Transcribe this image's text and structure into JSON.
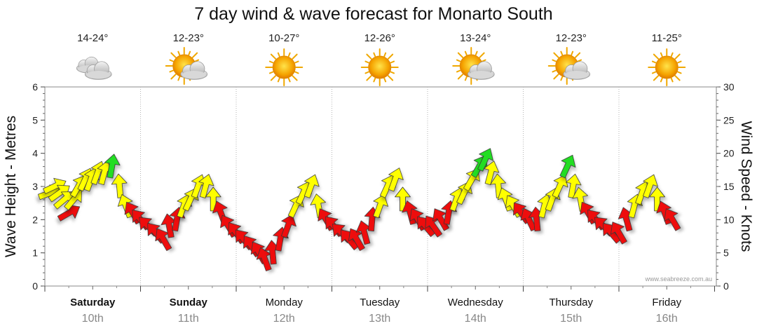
{
  "chart_data": {
    "type": "scatter",
    "title": "7 day wind & wave forecast for Monarto South",
    "ylabel_left": "Wave Height - Metres",
    "ylabel_right": "Wind Speed - Knots",
    "ylim_left": [
      0,
      6
    ],
    "ylim_right": [
      0,
      30
    ],
    "left_ticks": [
      "0",
      "1",
      "2",
      "3",
      "4",
      "5",
      "6"
    ],
    "right_ticks": [
      "0",
      "5",
      "10",
      "15",
      "20",
      "25",
      "30"
    ],
    "credit": "www.seabreeze.com.au",
    "legend_colors": {
      "low": "#ee1111",
      "mid": "#ffff00",
      "high": "#22dd22"
    },
    "days": [
      {
        "name": "Saturday",
        "date": "10th",
        "temp": "14-24°",
        "icon": "cloud-icon",
        "bold": true
      },
      {
        "name": "Sunday",
        "date": "11th",
        "temp": "12-23°",
        "icon": "sun-cloud-icon",
        "bold": true
      },
      {
        "name": "Monday",
        "date": "12th",
        "temp": "10-27°",
        "icon": "sun-icon",
        "bold": false
      },
      {
        "name": "Tuesday",
        "date": "13th",
        "temp": "12-26°",
        "icon": "sun-icon",
        "bold": false
      },
      {
        "name": "Wednesday",
        "date": "14th",
        "temp": "13-24°",
        "icon": "sun-cloud-icon",
        "bold": false
      },
      {
        "name": "Thursday",
        "date": "15th",
        "temp": "12-23°",
        "icon": "sun-cloud-icon",
        "bold": false
      },
      {
        "name": "Friday",
        "date": "16th",
        "temp": "11-25°",
        "icon": "sun-icon",
        "bold": false
      }
    ],
    "wind_arrows": [
      {
        "t": 0.05,
        "speed": 14,
        "dir": 250
      },
      {
        "t": 0.1,
        "speed": 15,
        "dir": 245
      },
      {
        "t": 0.15,
        "speed": 14,
        "dir": 235
      },
      {
        "t": 0.2,
        "speed": 13,
        "dir": 230
      },
      {
        "t": 0.25,
        "speed": 11,
        "dir": 240
      },
      {
        "t": 0.3,
        "speed": 13,
        "dir": 220
      },
      {
        "t": 0.35,
        "speed": 15,
        "dir": 210
      },
      {
        "t": 0.42,
        "speed": 16,
        "dir": 205
      },
      {
        "t": 0.48,
        "speed": 16,
        "dir": 200
      },
      {
        "t": 0.55,
        "speed": 17,
        "dir": 200
      },
      {
        "t": 0.62,
        "speed": 17,
        "dir": 195
      },
      {
        "t": 0.7,
        "speed": 18,
        "dir": 190
      },
      {
        "t": 0.78,
        "speed": 15,
        "dir": 175
      },
      {
        "t": 0.85,
        "speed": 12,
        "dir": 160
      },
      {
        "t": 0.92,
        "speed": 11,
        "dir": 150
      },
      {
        "t": 1.0,
        "speed": 10,
        "dir": 140
      },
      {
        "t": 1.08,
        "speed": 9,
        "dir": 135
      },
      {
        "t": 1.16,
        "speed": 8,
        "dir": 140
      },
      {
        "t": 1.24,
        "speed": 7,
        "dir": 150
      },
      {
        "t": 1.3,
        "speed": 9,
        "dir": 170
      },
      {
        "t": 1.38,
        "speed": 10,
        "dir": 190
      },
      {
        "t": 1.45,
        "speed": 12,
        "dir": 200
      },
      {
        "t": 1.52,
        "speed": 13,
        "dir": 205
      },
      {
        "t": 1.6,
        "speed": 15,
        "dir": 200
      },
      {
        "t": 1.68,
        "speed": 15,
        "dir": 195
      },
      {
        "t": 1.76,
        "speed": 13,
        "dir": 180
      },
      {
        "t": 1.84,
        "speed": 11,
        "dir": 160
      },
      {
        "t": 1.92,
        "speed": 9,
        "dir": 150
      },
      {
        "t": 2.0,
        "speed": 8,
        "dir": 145
      },
      {
        "t": 2.08,
        "speed": 7,
        "dir": 140
      },
      {
        "t": 2.16,
        "speed": 6,
        "dir": 145
      },
      {
        "t": 2.24,
        "speed": 5,
        "dir": 150
      },
      {
        "t": 2.3,
        "speed": 4,
        "dir": 160
      },
      {
        "t": 2.38,
        "speed": 5,
        "dir": 175
      },
      {
        "t": 2.46,
        "speed": 7,
        "dir": 190
      },
      {
        "t": 2.54,
        "speed": 9,
        "dir": 200
      },
      {
        "t": 2.62,
        "speed": 12,
        "dir": 205
      },
      {
        "t": 2.7,
        "speed": 14,
        "dir": 205
      },
      {
        "t": 2.78,
        "speed": 15,
        "dir": 200
      },
      {
        "t": 2.86,
        "speed": 12,
        "dir": 170
      },
      {
        "t": 2.94,
        "speed": 10,
        "dir": 150
      },
      {
        "t": 3.02,
        "speed": 9,
        "dir": 140
      },
      {
        "t": 3.1,
        "speed": 8,
        "dir": 135
      },
      {
        "t": 3.18,
        "speed": 7,
        "dir": 140
      },
      {
        "t": 3.26,
        "speed": 7,
        "dir": 150
      },
      {
        "t": 3.34,
        "speed": 8,
        "dir": 165
      },
      {
        "t": 3.42,
        "speed": 10,
        "dir": 185
      },
      {
        "t": 3.5,
        "speed": 12,
        "dir": 200
      },
      {
        "t": 3.58,
        "speed": 15,
        "dir": 205
      },
      {
        "t": 3.66,
        "speed": 16,
        "dir": 200
      },
      {
        "t": 3.74,
        "speed": 13,
        "dir": 180
      },
      {
        "t": 3.82,
        "speed": 11,
        "dir": 165
      },
      {
        "t": 3.9,
        "speed": 10,
        "dir": 150
      },
      {
        "t": 3.98,
        "speed": 9,
        "dir": 140
      },
      {
        "t": 4.06,
        "speed": 9,
        "dir": 145
      },
      {
        "t": 4.14,
        "speed": 10,
        "dir": 150
      },
      {
        "t": 4.22,
        "speed": 11,
        "dir": 190
      },
      {
        "t": 4.3,
        "speed": 13,
        "dir": 200
      },
      {
        "t": 4.38,
        "speed": 14,
        "dir": 205
      },
      {
        "t": 4.46,
        "speed": 16,
        "dir": 210
      },
      {
        "t": 4.54,
        "speed": 18,
        "dir": 210
      },
      {
        "t": 4.6,
        "speed": 19,
        "dir": 205
      },
      {
        "t": 4.66,
        "speed": 17,
        "dir": 195
      },
      {
        "t": 4.74,
        "speed": 15,
        "dir": 175
      },
      {
        "t": 4.82,
        "speed": 13,
        "dir": 160
      },
      {
        "t": 4.9,
        "speed": 12,
        "dir": 150
      },
      {
        "t": 4.98,
        "speed": 11,
        "dir": 145
      },
      {
        "t": 5.06,
        "speed": 10,
        "dir": 155
      },
      {
        "t": 5.14,
        "speed": 10,
        "dir": 175
      },
      {
        "t": 5.22,
        "speed": 12,
        "dir": 195
      },
      {
        "t": 5.3,
        "speed": 13,
        "dir": 200
      },
      {
        "t": 5.38,
        "speed": 15,
        "dir": 205
      },
      {
        "t": 5.46,
        "speed": 18,
        "dir": 205
      },
      {
        "t": 5.52,
        "speed": 15,
        "dir": 190
      },
      {
        "t": 5.6,
        "speed": 13,
        "dir": 170
      },
      {
        "t": 5.68,
        "speed": 11,
        "dir": 150
      },
      {
        "t": 5.76,
        "speed": 10,
        "dir": 140
      },
      {
        "t": 5.84,
        "speed": 9,
        "dir": 135
      },
      {
        "t": 5.92,
        "speed": 8,
        "dir": 140
      },
      {
        "t": 6.0,
        "speed": 8,
        "dir": 150
      },
      {
        "t": 6.08,
        "speed": 10,
        "dir": 165
      },
      {
        "t": 6.16,
        "speed": 12,
        "dir": 195
      },
      {
        "t": 6.24,
        "speed": 14,
        "dir": 200
      },
      {
        "t": 6.32,
        "speed": 15,
        "dir": 200
      },
      {
        "t": 6.4,
        "speed": 13,
        "dir": 180
      },
      {
        "t": 6.48,
        "speed": 11,
        "dir": 160
      },
      {
        "t": 6.56,
        "speed": 10,
        "dir": 150
      }
    ]
  }
}
